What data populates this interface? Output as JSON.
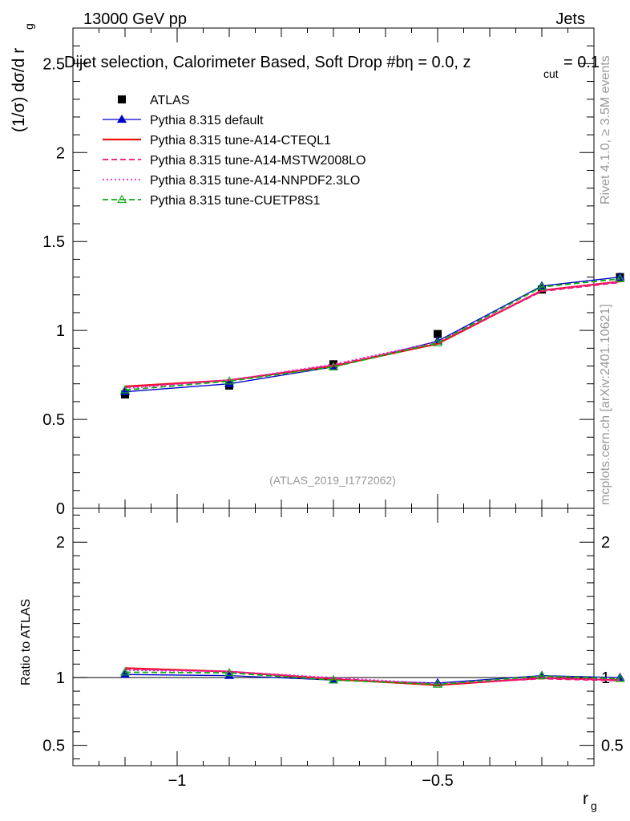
{
  "header": {
    "energy_label": "13000 GeV pp",
    "category_label": "Jets"
  },
  "side_labels": {
    "rivet": "Rivet 4.1.0, ≥ 3.5M events",
    "mcplots": "mcplots.cern.ch [arXiv:2401.10621]"
  },
  "chart_data": [
    {
      "type": "line",
      "title": "Dijet selection, Calorimeter Based, Soft Drop #beta = 0.0, z_cut = 0.1",
      "title_parts": {
        "main": "Dijet selection, Calorimeter Based, Soft Drop #b",
        "eta_sym": "η",
        "beta_rest": " = 0.0, z",
        "sub": "cut",
        "end": " = 0.1"
      },
      "ylabel": "(1/σ) dσ/d r",
      "ylabel_sub": "g",
      "watermark": "(ATLAS_2019_I1772062)",
      "xlim": [
        -1.2,
        -0.2
      ],
      "ylim": [
        0,
        2.7
      ],
      "yticks": [
        "0",
        "0.5",
        "1",
        "1.5",
        "2",
        "2.5"
      ],
      "x": [
        -1.1,
        -0.9,
        -0.7,
        -0.5,
        -0.3,
        -0.15
      ],
      "series": [
        {
          "name": "ATLAS",
          "style": "data",
          "color": "#000000",
          "values": [
            0.64,
            0.69,
            0.81,
            0.98,
            1.23,
            1.3
          ]
        },
        {
          "name": "Pythia 8.315 default",
          "style": "line-triangle",
          "color": "#0000cc",
          "values": [
            0.655,
            0.7,
            0.795,
            0.94,
            1.25,
            1.3
          ]
        },
        {
          "name": "Pythia 8.315 tune-A14-CTEQL1",
          "style": "solid",
          "color": "#ee1111",
          "values": [
            0.685,
            0.72,
            0.8,
            0.925,
            1.225,
            1.275
          ]
        },
        {
          "name": "Pythia 8.315 tune-A14-MSTW2008LO",
          "style": "dashed",
          "color": "#ee1177",
          "values": [
            0.68,
            0.72,
            0.805,
            0.93,
            1.22,
            1.27
          ]
        },
        {
          "name": "Pythia 8.315 tune-A14-NNPDF2.3LO",
          "style": "dotted",
          "color": "#ee22cc",
          "values": [
            0.675,
            0.72,
            0.81,
            0.935,
            1.225,
            1.275
          ]
        },
        {
          "name": "Pythia 8.315 tune-CUETP8S1",
          "style": "dashed-open-triangle",
          "color": "#11aa11",
          "values": [
            0.665,
            0.715,
            0.795,
            0.93,
            1.245,
            1.29
          ]
        }
      ]
    },
    {
      "type": "line",
      "title": "",
      "ylabel": "Ratio to ATLAS",
      "xlabel": "r",
      "xlabel_sub": "g",
      "xlim": [
        -1.2,
        -0.2
      ],
      "ylim": [
        0.35,
        2.25
      ],
      "yticks": [
        "0.5",
        "1",
        "2"
      ],
      "yticks_right": [
        "0.5",
        "1",
        "2"
      ],
      "xticks": [
        "−1",
        "−0.5"
      ],
      "x": [
        -1.1,
        -0.9,
        -0.7,
        -0.5,
        -0.3,
        -0.15
      ],
      "series": [
        {
          "name": "Pythia 8.315 default",
          "color": "#0000cc",
          "values": [
            1.023,
            1.015,
            0.982,
            0.96,
            1.015,
            1.0
          ]
        },
        {
          "name": "Pythia 8.315 tune-A14-CTEQL1",
          "color": "#ee1111",
          "values": [
            1.07,
            1.045,
            0.988,
            0.945,
            0.997,
            0.983
          ]
        },
        {
          "name": "Pythia 8.315 tune-A14-MSTW2008LO",
          "color": "#ee1177",
          "values": [
            1.063,
            1.045,
            0.993,
            0.95,
            0.992,
            0.977
          ]
        },
        {
          "name": "Pythia 8.315 tune-A14-NNPDF2.3LO",
          "color": "#ee22cc",
          "values": [
            1.055,
            1.045,
            1.0,
            0.955,
            0.997,
            0.983
          ]
        },
        {
          "name": "Pythia 8.315 tune-CUETP8S1",
          "color": "#11aa11",
          "values": [
            1.04,
            1.035,
            0.982,
            0.95,
            1.012,
            0.992
          ]
        }
      ]
    }
  ]
}
